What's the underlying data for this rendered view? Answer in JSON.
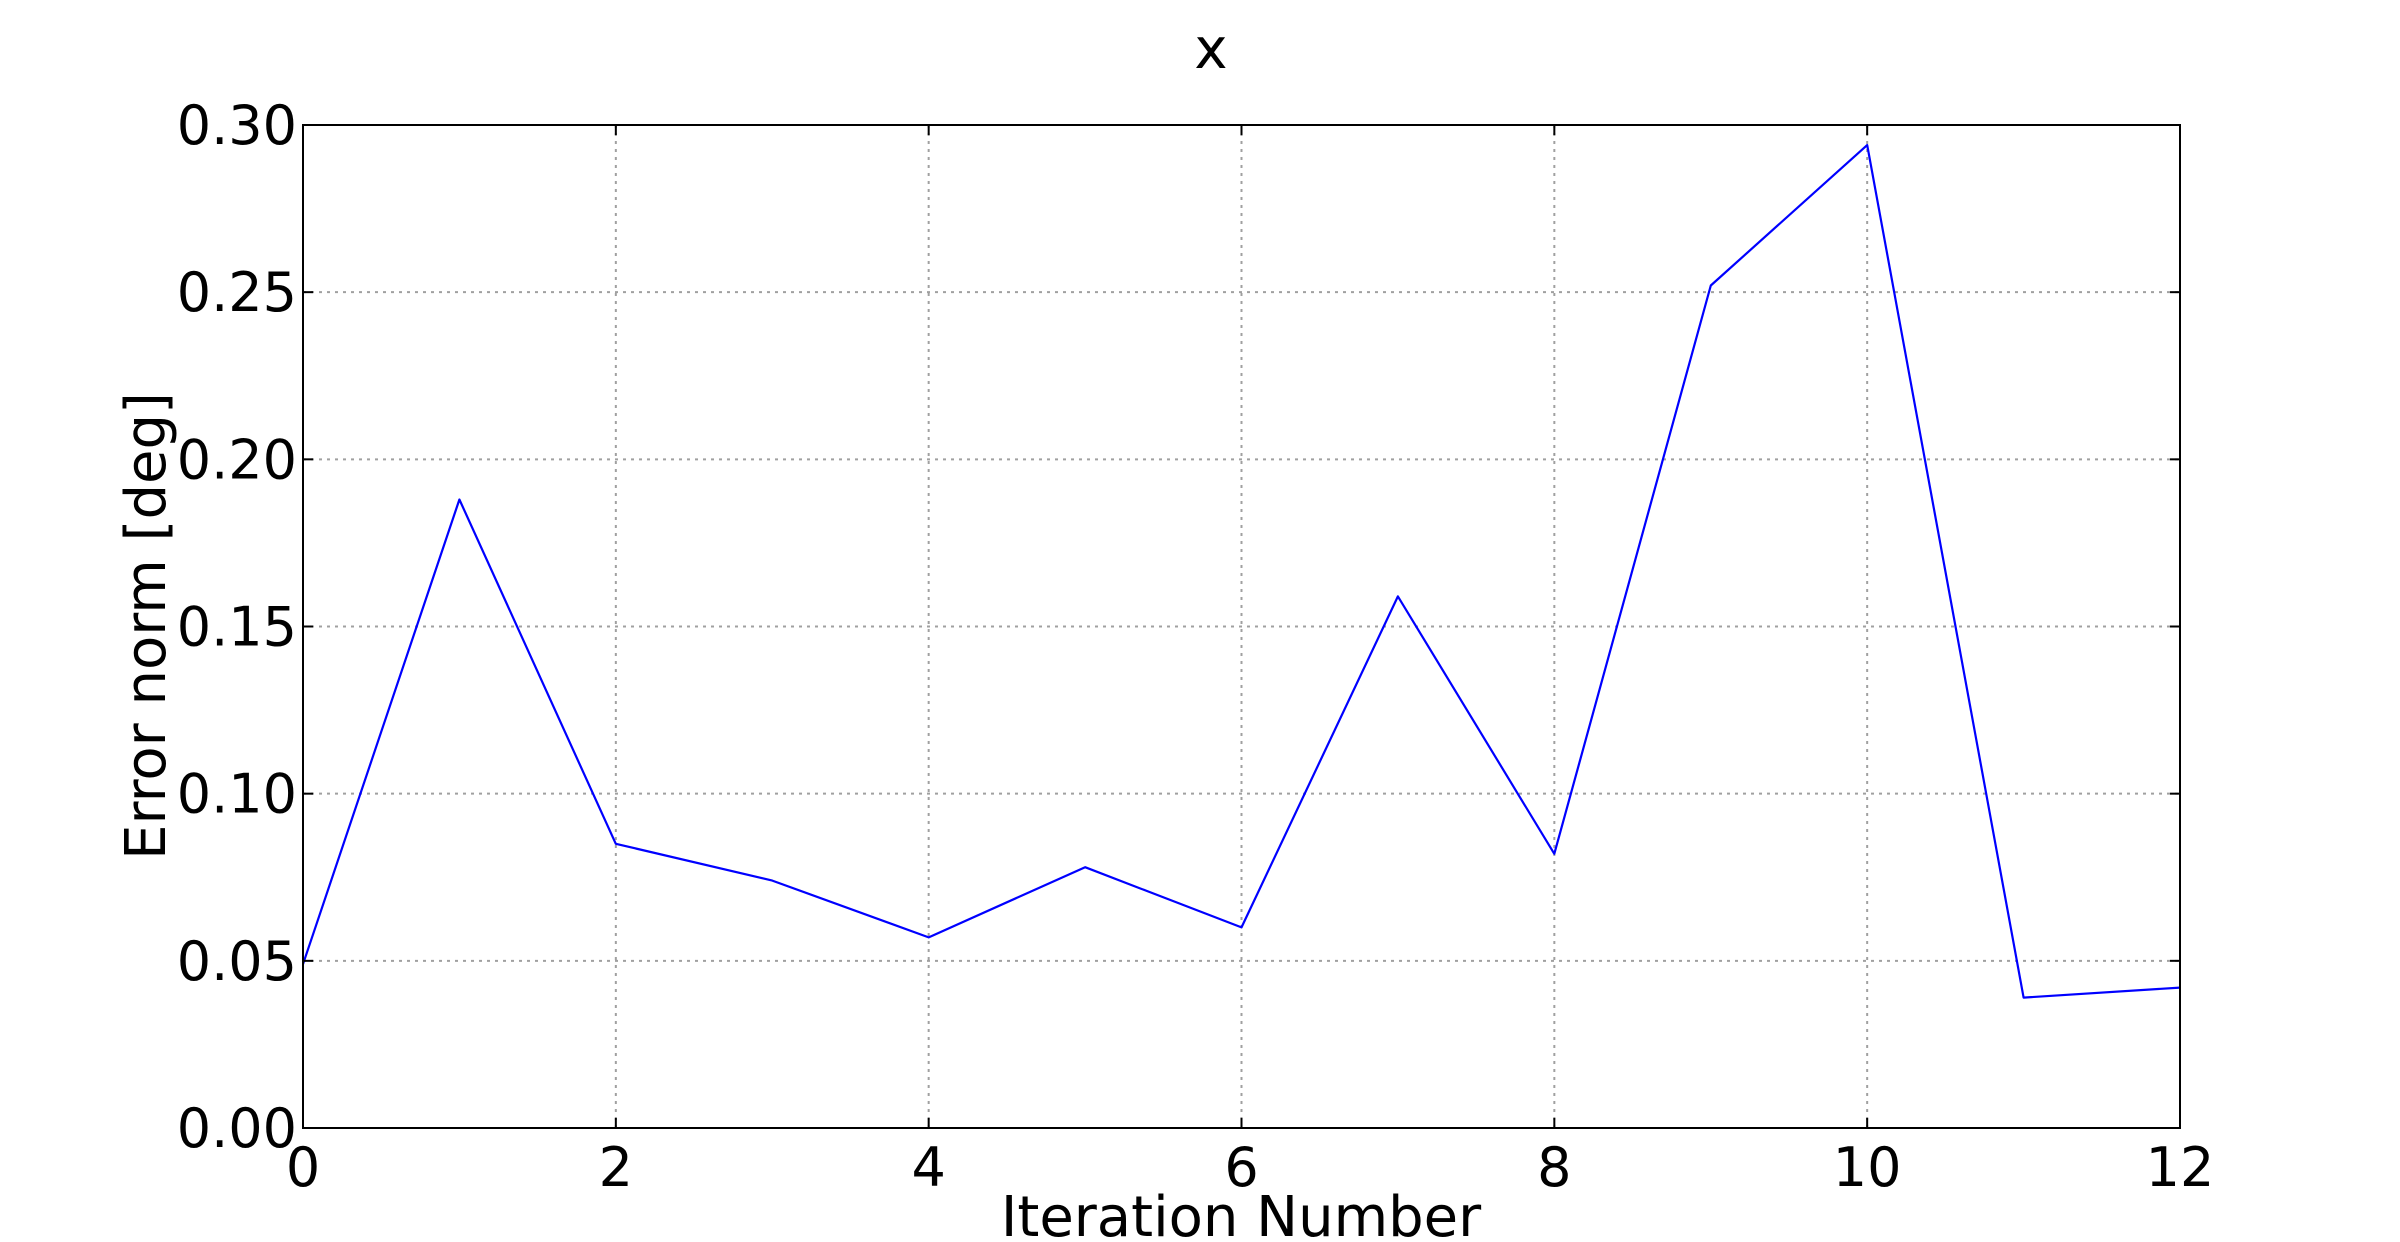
{
  "chart_data": {
    "type": "line",
    "title": "x",
    "xlabel": "Iteration Number",
    "ylabel": "Error norm [deg]",
    "xlim": [
      0,
      12
    ],
    "ylim": [
      0,
      0.3
    ],
    "x_ticks": [
      "0",
      "2",
      "4",
      "6",
      "8",
      "10",
      "12"
    ],
    "y_ticks": [
      "0.00",
      "0.05",
      "0.10",
      "0.15",
      "0.20",
      "0.25",
      "0.30"
    ],
    "grid": true,
    "series": [
      {
        "color": "#0000ff",
        "x": [
          0,
          1,
          2,
          3,
          4,
          5,
          6,
          7,
          8,
          9,
          10,
          11,
          12
        ],
        "y": [
          0.049,
          0.188,
          0.085,
          0.074,
          0.057,
          0.078,
          0.06,
          0.159,
          0.082,
          0.252,
          0.294,
          0.039,
          0.042
        ]
      }
    ]
  }
}
